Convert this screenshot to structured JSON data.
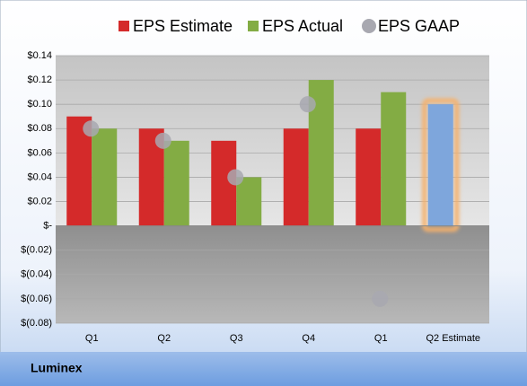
{
  "chart_data": {
    "type": "bar",
    "footer": "Luminex",
    "categories": [
      "Q1",
      "Q2",
      "Q3",
      "Q4",
      "Q1",
      "Q2 Estimate"
    ],
    "series": [
      {
        "name": "EPS Estimate",
        "color": "#d42a2a",
        "point_colors": [
          "#d42a2a",
          "#d42a2a",
          "#d42a2a",
          "#d42a2a",
          "#d42a2a",
          "#7ea6dc"
        ],
        "highlight_color": "#f5b16c",
        "values": [
          0.09,
          0.08,
          0.07,
          0.08,
          0.08,
          0.1
        ]
      },
      {
        "name": "EPS Actual",
        "color": "#83ac44",
        "values": [
          0.08,
          0.07,
          0.04,
          0.12,
          0.11,
          null
        ]
      },
      {
        "name": "EPS GAAP",
        "color": "#a8a8b0",
        "marker": "circle",
        "values": [
          0.08,
          0.07,
          0.04,
          0.1,
          -0.06,
          null
        ]
      }
    ],
    "ylim": [
      -0.08,
      0.14
    ],
    "yticks": [
      {
        "value": -0.08,
        "label": "$(0.08)"
      },
      {
        "value": -0.06,
        "label": "$(0.06)"
      },
      {
        "value": -0.04,
        "label": "$(0.04)"
      },
      {
        "value": -0.02,
        "label": "$(0.02)"
      },
      {
        "value": 0,
        "label": "$-"
      },
      {
        "value": 0.02,
        "label": "$0.02"
      },
      {
        "value": 0.04,
        "label": "$0.04"
      },
      {
        "value": 0.06,
        "label": "$0.06"
      },
      {
        "value": 0.08,
        "label": "$0.08"
      },
      {
        "value": 0.1,
        "label": "$0.10"
      },
      {
        "value": 0.12,
        "label": "$0.12"
      },
      {
        "value": 0.14,
        "label": "$0.14"
      }
    ],
    "grid": true
  }
}
